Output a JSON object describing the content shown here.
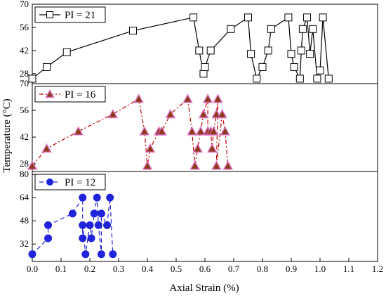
{
  "chart_data": {
    "type": "line",
    "layout": "stacked-panels",
    "xlabel": "Axial Strain (%)",
    "ylabel": "Temperature (°C)",
    "xlim": [
      0.0,
      1.2
    ],
    "xticks": [
      "0.0",
      "0.1",
      "0.2",
      "0.3",
      "0.4",
      "0.5",
      "0.6",
      "0.7",
      "0.8",
      "0.9",
      "1.0",
      "1.1",
      "1.2"
    ],
    "grid": false,
    "legend_position": "top-left",
    "panels": [
      {
        "series_name": "PI = 21",
        "marker": "square",
        "line_style": "solid",
        "color": "#000000",
        "marker_fill": "#ffffff",
        "ylim": [
          22,
          70
        ],
        "yticks": [
          "28",
          "42",
          "56",
          "70"
        ],
        "points": [
          [
            0.0,
            25
          ],
          [
            0.05,
            32
          ],
          [
            0.12,
            41
          ],
          [
            0.35,
            54
          ],
          [
            0.56,
            62
          ],
          [
            0.58,
            42
          ],
          [
            0.595,
            28
          ],
          [
            0.6,
            32
          ],
          [
            0.62,
            42
          ],
          [
            0.69,
            55
          ],
          [
            0.75,
            62
          ],
          [
            0.76,
            40
          ],
          [
            0.78,
            25
          ],
          [
            0.8,
            32
          ],
          [
            0.82,
            42
          ],
          [
            0.83,
            55
          ],
          [
            0.89,
            62
          ],
          [
            0.9,
            40
          ],
          [
            0.91,
            32
          ],
          [
            0.93,
            25
          ],
          [
            0.935,
            42
          ],
          [
            0.94,
            55
          ],
          [
            0.955,
            62
          ],
          [
            0.965,
            40
          ],
          [
            0.975,
            55
          ],
          [
            0.99,
            25
          ],
          [
            1.0,
            30
          ],
          [
            1.01,
            62
          ],
          [
            1.03,
            25
          ]
        ]
      },
      {
        "series_name": "PI = 16",
        "marker": "triangle",
        "line_style": "dash-dot",
        "color": "#c00000",
        "marker_fill": "#8b3a12",
        "ylim": [
          24,
          70
        ],
        "yticks": [
          "28",
          "42",
          "56",
          "70"
        ],
        "points": [
          [
            0.0,
            27
          ],
          [
            0.05,
            36
          ],
          [
            0.16,
            45
          ],
          [
            0.28,
            54
          ],
          [
            0.37,
            62
          ],
          [
            0.39,
            45
          ],
          [
            0.4,
            27
          ],
          [
            0.41,
            36
          ],
          [
            0.44,
            45
          ],
          [
            0.45,
            45
          ],
          [
            0.48,
            54
          ],
          [
            0.54,
            62
          ],
          [
            0.555,
            45
          ],
          [
            0.565,
            27
          ],
          [
            0.575,
            36
          ],
          [
            0.585,
            45
          ],
          [
            0.595,
            54
          ],
          [
            0.61,
            62
          ],
          [
            0.61,
            45
          ],
          [
            0.62,
            45
          ],
          [
            0.625,
            36
          ],
          [
            0.63,
            45
          ],
          [
            0.64,
            54
          ],
          [
            0.645,
            62
          ],
          [
            0.64,
            27
          ],
          [
            0.66,
            54
          ],
          [
            0.67,
            45
          ],
          [
            0.68,
            27
          ]
        ]
      },
      {
        "series_name": "PI = 12",
        "marker": "circle",
        "line_style": "dashed",
        "color": "#1f23d9",
        "marker_fill": "#1f23d9",
        "ylim": [
          20,
          82
        ],
        "yticks": [
          "32",
          "48",
          "64",
          "80"
        ],
        "points": [
          [
            0.0,
            25
          ],
          [
            0.055,
            36
          ],
          [
            0.055,
            45
          ],
          [
            0.14,
            53
          ],
          [
            0.175,
            64
          ],
          [
            0.175,
            36
          ],
          [
            0.175,
            45
          ],
          [
            0.185,
            25
          ],
          [
            0.2,
            45
          ],
          [
            0.205,
            36
          ],
          [
            0.215,
            53
          ],
          [
            0.225,
            64
          ],
          [
            0.23,
            45
          ],
          [
            0.24,
            25
          ],
          [
            0.24,
            53
          ],
          [
            0.26,
            45
          ],
          [
            0.27,
            64
          ],
          [
            0.28,
            25
          ]
        ]
      }
    ]
  }
}
